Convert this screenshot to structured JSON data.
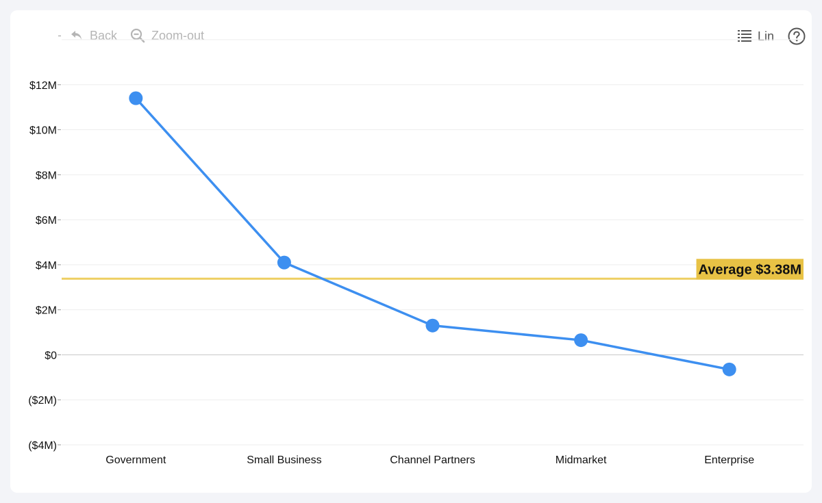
{
  "toolbar": {
    "back_label": "Back",
    "zoom_out_label": "Zoom-out",
    "scale_label": "Lin",
    "back_icon": "undo-arrow-icon",
    "zoom_icon": "magnifier-minus-icon",
    "list_icon": "list-icon",
    "help_icon": "question-circle-icon"
  },
  "chart_data": {
    "type": "line",
    "categories": [
      "Government",
      "Small Business",
      "Channel Partners",
      "Midmarket",
      "Enterprise"
    ],
    "series": [
      {
        "values": [
          11.4,
          4.1,
          1.3,
          0.65,
          -0.65
        ],
        "color": "#3d8ff0"
      }
    ],
    "y_ticks": [
      {
        "value": 12,
        "label": "$12M"
      },
      {
        "value": 10,
        "label": "$10M"
      },
      {
        "value": 8,
        "label": "$8M"
      },
      {
        "value": 6,
        "label": "$6M"
      },
      {
        "value": 4,
        "label": "$4M"
      },
      {
        "value": 2,
        "label": "$2M"
      },
      {
        "value": 0,
        "label": "$0"
      },
      {
        "value": -2,
        "label": "($2M)"
      },
      {
        "value": -4,
        "label": "($4M)"
      }
    ],
    "ylim": [
      -4,
      14
    ],
    "grid": true,
    "reference_line": {
      "value": 3.38,
      "label": "Average $3.38M",
      "color": "#eecf62",
      "label_bg": "#e8c245"
    }
  }
}
